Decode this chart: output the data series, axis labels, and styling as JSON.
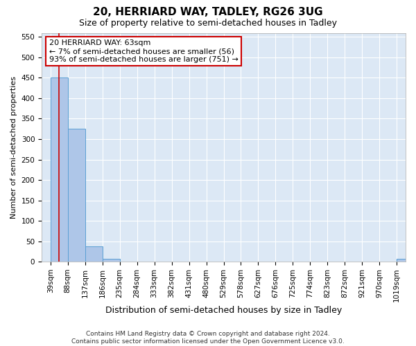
{
  "title": "20, HERRIARD WAY, TADLEY, RG26 3UG",
  "subtitle": "Size of property relative to semi-detached houses in Tadley",
  "xlabel": "Distribution of semi-detached houses by size in Tadley",
  "ylabel": "Number of semi-detached properties",
  "footer_line1": "Contains HM Land Registry data © Crown copyright and database right 2024.",
  "footer_line2": "Contains public sector information licensed under the Open Government Licence v3.0.",
  "bar_edges": [
    39,
    88,
    137,
    186,
    235,
    284,
    333,
    382,
    431,
    480,
    529,
    578,
    627,
    676,
    725,
    774,
    823,
    872,
    921,
    970,
    1019
  ],
  "bar_heights": [
    450,
    325,
    37,
    7,
    0,
    0,
    0,
    0,
    0,
    0,
    0,
    0,
    0,
    0,
    0,
    0,
    0,
    0,
    0,
    0,
    7
  ],
  "bar_color": "#aec6e8",
  "bar_edge_color": "#5a9fd4",
  "subject_x": 63,
  "subject_line_color": "#cc0000",
  "annotation_title": "20 HERRIARD WAY: 63sqm",
  "annotation_line1": "← 7% of semi-detached houses are smaller (56)",
  "annotation_line2": "93% of semi-detached houses are larger (751) →",
  "annotation_box_color": "#ffffff",
  "annotation_box_edge_color": "#cc0000",
  "ylim": [
    0,
    560
  ],
  "xlim_left": 14,
  "xlim_right": 1044,
  "background_color": "#ffffff",
  "plot_bg_color": "#dce8f5",
  "grid_color": "#ffffff",
  "title_fontsize": 11,
  "subtitle_fontsize": 9,
  "ylabel_fontsize": 8,
  "xlabel_fontsize": 9,
  "tick_fontsize": 7.5,
  "footer_fontsize": 6.5,
  "annotation_fontsize": 8
}
